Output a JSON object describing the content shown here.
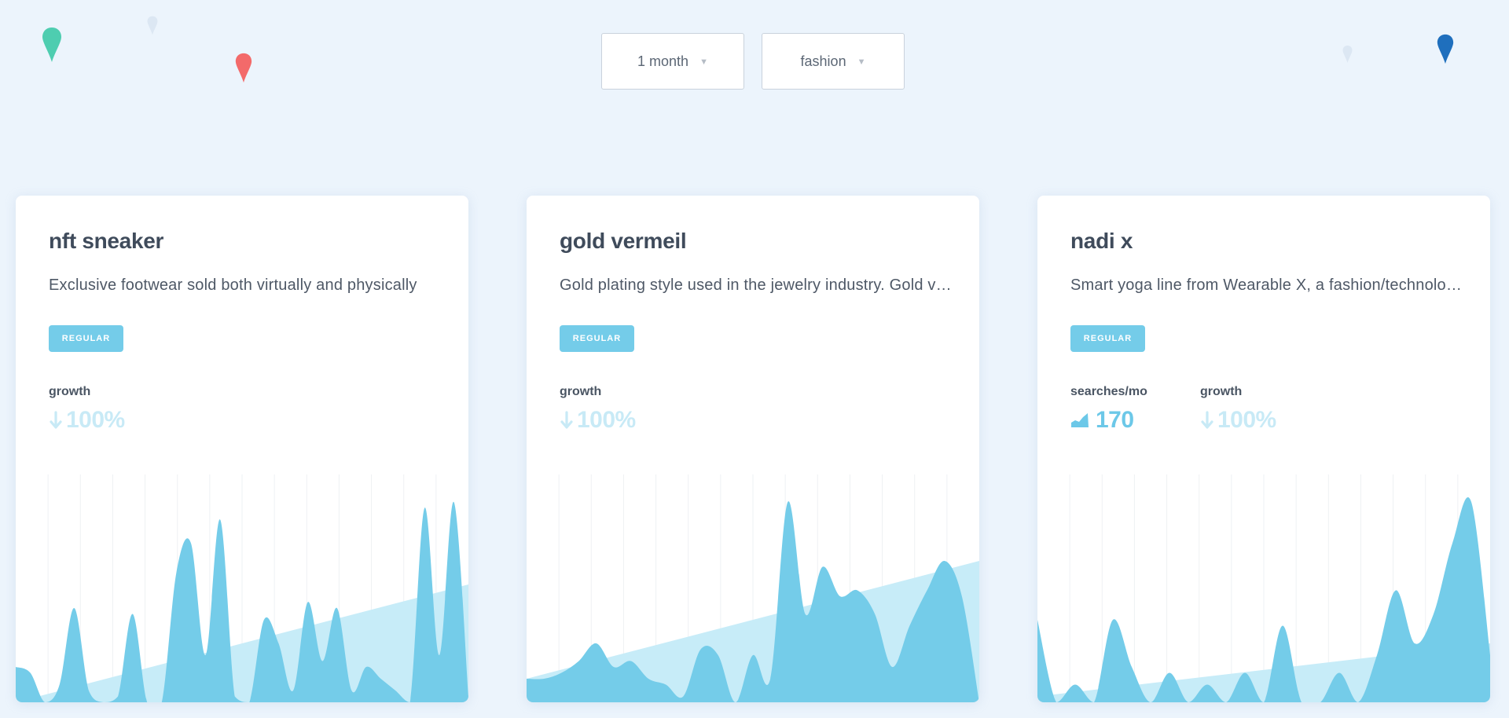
{
  "filters": {
    "time_range": "1 month",
    "category": "fashion"
  },
  "colors": {
    "background": "#ecf4fc",
    "accent": "#74cce9",
    "trend": "#c7ecf8",
    "pins": [
      "#4ecdb0",
      "#f36a6a",
      "#1f6fbd",
      "#dce7f3"
    ]
  },
  "cards": [
    {
      "title": "nft sneaker",
      "description": "Exclusive footwear sold both virtually and physically",
      "badge": "REGULAR",
      "stats": [
        {
          "label": "growth",
          "value": "100%",
          "icon": "arrow-down-icon"
        }
      ],
      "chart_data": {
        "type": "area",
        "values": [
          6,
          5,
          0,
          3,
          16,
          2,
          0,
          1,
          15,
          0,
          0,
          22,
          27,
          8,
          31,
          1,
          0,
          14,
          10,
          2,
          17,
          7,
          16,
          2,
          6,
          4,
          2,
          0,
          33,
          8,
          34,
          1
        ],
        "trend": [
          0,
          20
        ],
        "ylim": [
          0,
          40
        ],
        "grid": true
      }
    },
    {
      "title": "gold vermeil",
      "description": "Gold plating style used in the jewelry industry. Gold vermeil",
      "badge": "REGULAR",
      "stats": [
        {
          "label": "growth",
          "value": "100%",
          "icon": "arrow-down-icon"
        }
      ],
      "chart_data": {
        "type": "area",
        "values": [
          4,
          4,
          5,
          7,
          10,
          6,
          7,
          4,
          3,
          1,
          9,
          8,
          0,
          8,
          4,
          34,
          15,
          23,
          18,
          19,
          15,
          6,
          13,
          19,
          24,
          18,
          0
        ],
        "trend": [
          4,
          24
        ],
        "ylim": [
          0,
          40
        ],
        "grid": true
      }
    },
    {
      "title": "nadi x",
      "description": "Smart yoga line from Wearable X, a fashion/technology brand",
      "badge": "REGULAR",
      "stats": [
        {
          "label": "searches/mo",
          "value": "170",
          "icon": "volume-bars-icon"
        },
        {
          "label": "growth",
          "value": "100%",
          "icon": "arrow-down-icon"
        }
      ],
      "chart_data": {
        "type": "area",
        "values": [
          14,
          0,
          3,
          0,
          14,
          6,
          0,
          5,
          0,
          3,
          0,
          5,
          0,
          13,
          0,
          0,
          5,
          0,
          8,
          19,
          10,
          15,
          27,
          34,
          8
        ],
        "trend": [
          1,
          10
        ],
        "ylim": [
          0,
          40
        ],
        "grid": true
      }
    }
  ]
}
